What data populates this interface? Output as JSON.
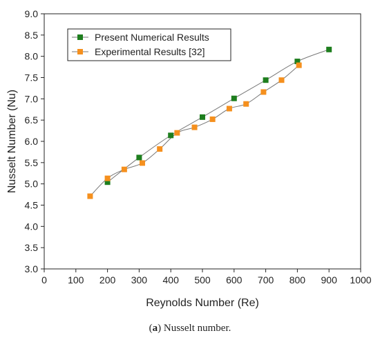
{
  "caption": {
    "letter": "a",
    "text": " Nusselt number."
  },
  "chart_data": {
    "type": "scatter",
    "xlabel": "Reynolds Number (Re)",
    "ylabel": "Nusselt Number (Nu)",
    "xlim": [
      0,
      1000
    ],
    "ylim": [
      3.0,
      9.0
    ],
    "xticks": [
      0,
      100,
      200,
      300,
      400,
      500,
      600,
      700,
      800,
      900,
      1000
    ],
    "yticks": [
      3.0,
      3.5,
      4.0,
      4.5,
      5.0,
      5.5,
      6.0,
      6.5,
      7.0,
      7.5,
      8.0,
      8.5,
      9.0
    ],
    "xtick_labels": [
      "0",
      "100",
      "200",
      "300",
      "400",
      "500",
      "600",
      "700",
      "800",
      "900",
      "1000"
    ],
    "ytick_labels": [
      "3.0",
      "3.5",
      "4.0",
      "4.5",
      "5.0",
      "5.5",
      "6.0",
      "6.5",
      "7.0",
      "7.5",
      "8.0",
      "8.5",
      "9.0"
    ],
    "grid": false,
    "legend_position": "top-left",
    "series": [
      {
        "name": "Present Numerical Results",
        "color": "#1e7e1e",
        "marker": "square",
        "x": [
          200,
          300,
          400,
          500,
          600,
          700,
          800,
          900
        ],
        "y": [
          5.04,
          5.62,
          6.14,
          6.57,
          7.01,
          7.44,
          7.88,
          8.16
        ]
      },
      {
        "name": "Experimental Results [32]",
        "color": "#f5901e",
        "marker": "square",
        "x": [
          145,
          200,
          253,
          310,
          365,
          420,
          475,
          532,
          585,
          638,
          693,
          750,
          805
        ],
        "y": [
          4.71,
          5.13,
          5.34,
          5.49,
          5.82,
          6.2,
          6.33,
          6.52,
          6.77,
          6.88,
          7.16,
          7.44,
          7.79
        ]
      }
    ]
  }
}
